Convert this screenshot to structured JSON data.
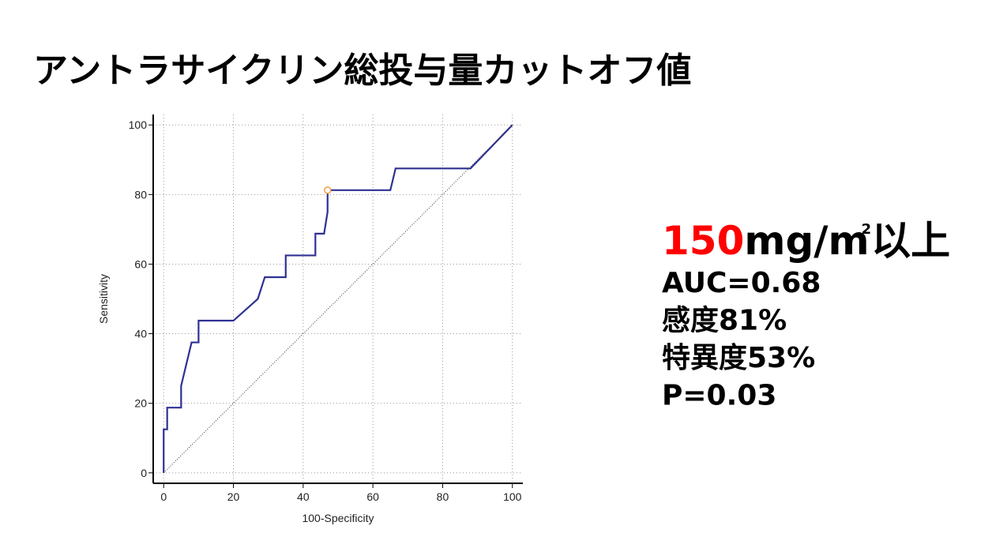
{
  "title": "アントラサイクリン総投与量カットオフ値",
  "chart_data": {
    "type": "line",
    "x_label": "100-Specificity",
    "y_label": "Sensitivity",
    "xlim": [
      -3,
      103
    ],
    "ylim": [
      -3,
      103
    ],
    "xticks": [
      0,
      20,
      40,
      60,
      80,
      100
    ],
    "yticks": [
      0,
      20,
      40,
      60,
      80,
      100
    ],
    "grid": true,
    "series": [
      {
        "color": "#2e3192",
        "style": "solid",
        "x": [
          0,
          0,
          1,
          1,
          5,
          5,
          8,
          10,
          10,
          20,
          27,
          29,
          35,
          35,
          43.5,
          43.5,
          46,
          47,
          47,
          65,
          66.5,
          88,
          100
        ],
        "values": [
          0,
          12.5,
          12.5,
          18.75,
          18.75,
          25,
          37.5,
          37.5,
          43.75,
          43.75,
          50,
          56.25,
          56.25,
          62.5,
          62.5,
          68.75,
          68.75,
          75,
          81.25,
          81.25,
          87.5,
          87.5,
          100
        ]
      },
      {
        "color": "#333333",
        "style": "dotted",
        "x": [
          0,
          100
        ],
        "values": [
          0,
          100
        ]
      }
    ],
    "marker": {
      "x": 47,
      "y": 81.25,
      "color": "#f39c3c"
    }
  },
  "result": {
    "cutoff": "150",
    "unit": "mg/m",
    "unit_sup": "2",
    "suffix": "以上",
    "stats": [
      "AUC=0.68",
      "感度81%",
      "特異度53%",
      "P=0.03"
    ]
  }
}
